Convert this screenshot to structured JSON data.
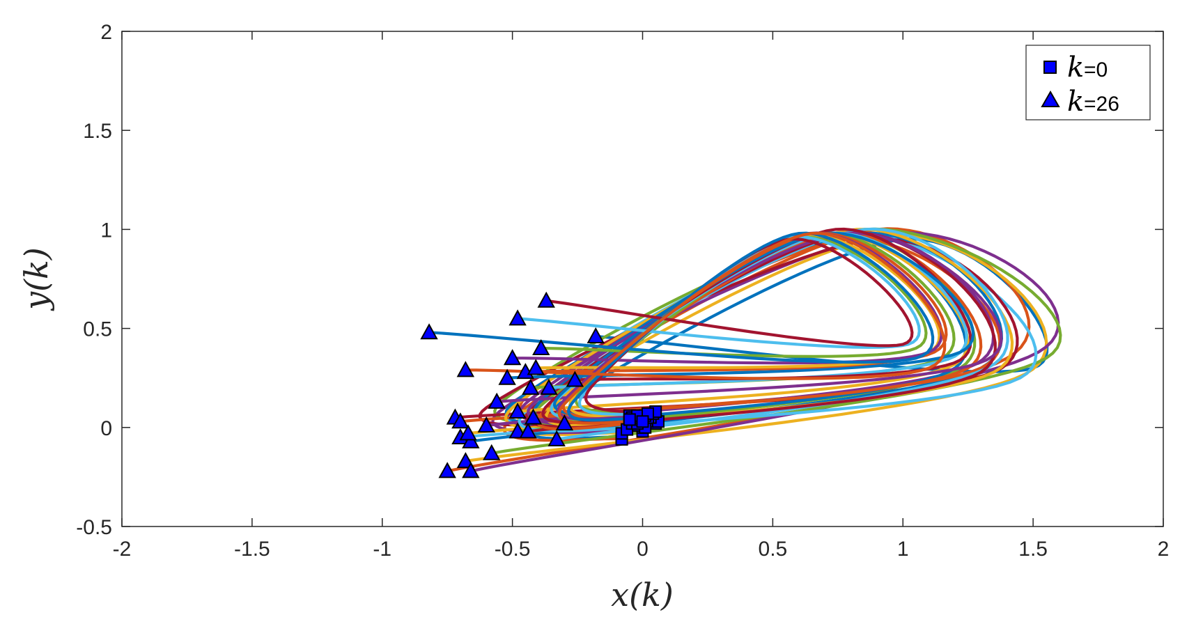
{
  "chart_data": {
    "type": "line",
    "xlabel": "x(k)",
    "ylabel": "y(k)",
    "xlim": [
      -2,
      2
    ],
    "ylim": [
      -0.5,
      2
    ],
    "xticks": [
      -2,
      -1.5,
      -1,
      -0.5,
      0,
      0.5,
      1,
      1.5,
      2
    ],
    "yticks": [
      -0.5,
      0,
      0.5,
      1,
      1.5,
      2
    ],
    "xtick_labels": [
      "-2",
      "-1.5",
      "-1",
      "-0.5",
      "0",
      "0.5",
      "1",
      "1.5",
      "2"
    ],
    "ytick_labels": [
      "-0.5",
      "0",
      "0.5",
      "1",
      "1.5",
      "2"
    ],
    "grid": false,
    "legend": {
      "position": "top-right",
      "entries": [
        {
          "k_label": "k",
          "suffix": "=0",
          "marker": "square"
        },
        {
          "k_label": "k",
          "suffix": "=26",
          "marker": "triangle"
        }
      ]
    },
    "marker_color": "#0000ff",
    "series_colors": [
      "#0072bd",
      "#d95319",
      "#edb120",
      "#7e2f8e",
      "#77ac30",
      "#4dbeee",
      "#a2142f"
    ],
    "series": [
      {
        "x": [
          -0.08,
          -0.4,
          1.0,
          1.5,
          -0.18
        ],
        "y": [
          -0.05,
          0.05,
          0.95,
          0.3,
          0.46
        ]
      },
      {
        "x": [
          -0.08,
          -0.5,
          0.9,
          1.4,
          -0.75
        ],
        "y": [
          -0.06,
          0.05,
          1.0,
          0.35,
          -0.22
        ]
      },
      {
        "x": [
          -0.08,
          -0.45,
          0.95,
          1.47,
          -0.68
        ],
        "y": [
          -0.03,
          0.07,
          0.97,
          0.27,
          -0.17
        ]
      },
      {
        "x": [
          0.0,
          -0.55,
          0.95,
          1.52,
          -0.66
        ],
        "y": [
          -0.02,
          0.08,
          0.98,
          0.38,
          -0.22
        ]
      },
      {
        "x": [
          0.05,
          -0.55,
          0.85,
          1.55,
          -0.58
        ],
        "y": [
          0.02,
          0.12,
          1.0,
          0.35,
          -0.13
        ]
      },
      {
        "x": [
          0.0,
          -0.5,
          0.8,
          1.45,
          -0.7
        ],
        "y": [
          0.0,
          0.1,
          0.98,
          0.25,
          -0.05
        ]
      },
      {
        "x": [
          -0.05,
          -0.6,
          0.9,
          1.35,
          -0.72
        ],
        "y": [
          0.03,
          0.1,
          0.95,
          0.28,
          0.05
        ]
      },
      {
        "x": [
          -0.02,
          -0.5,
          0.85,
          1.3,
          -0.66
        ],
        "y": [
          0.01,
          0.12,
          0.98,
          0.3,
          -0.07
        ]
      },
      {
        "x": [
          0.04,
          -0.45,
          0.8,
          1.3,
          -0.7
        ],
        "y": [
          0.05,
          0.15,
          0.95,
          0.3,
          0.03
        ]
      },
      {
        "x": [
          -0.06,
          -0.5,
          0.82,
          1.35,
          -0.67
        ],
        "y": [
          -0.01,
          0.1,
          1.0,
          0.28,
          -0.03
        ]
      },
      {
        "x": [
          0.02,
          -0.45,
          0.8,
          1.28,
          -0.6
        ],
        "y": [
          0.03,
          0.12,
          0.98,
          0.32,
          0.01
        ]
      },
      {
        "x": [
          -0.03,
          -0.4,
          0.75,
          1.22,
          -0.48
        ],
        "y": [
          0.02,
          0.1,
          0.98,
          0.3,
          -0.02
        ]
      },
      {
        "x": [
          0.01,
          -0.45,
          0.85,
          1.35,
          -0.33
        ],
        "y": [
          0.0,
          0.08,
          1.0,
          0.32,
          -0.06
        ]
      },
      {
        "x": [
          -0.04,
          -0.42,
          0.8,
          1.3,
          -0.44
        ],
        "y": [
          0.02,
          0.1,
          0.98,
          0.28,
          -0.02
        ]
      },
      {
        "x": [
          0.06,
          -0.4,
          0.72,
          1.2,
          -0.3
        ],
        "y": [
          0.03,
          0.12,
          0.98,
          0.3,
          0.02
        ]
      },
      {
        "x": [
          -0.02,
          -0.38,
          0.75,
          1.25,
          -0.42
        ],
        "y": [
          0.02,
          0.08,
          0.98,
          0.3,
          0.05
        ]
      },
      {
        "x": [
          0.0,
          -0.35,
          0.7,
          1.2,
          -0.48
        ],
        "y": [
          0.04,
          0.1,
          0.98,
          0.32,
          0.08
        ]
      },
      {
        "x": [
          0.03,
          -0.42,
          0.78,
          1.32,
          -0.56
        ],
        "y": [
          0.05,
          0.12,
          0.98,
          0.34,
          0.13
        ]
      },
      {
        "x": [
          -0.05,
          -0.3,
          0.68,
          1.15,
          -0.43
        ],
        "y": [
          0.06,
          0.12,
          0.98,
          0.35,
          0.2
        ]
      },
      {
        "x": [
          0.02,
          -0.33,
          0.72,
          1.2,
          -0.36
        ],
        "y": [
          0.05,
          0.14,
          0.98,
          0.36,
          0.2
        ]
      },
      {
        "x": [
          -0.01,
          -0.36,
          0.74,
          1.22,
          -0.26
        ],
        "y": [
          0.04,
          0.12,
          1.0,
          0.34,
          0.24
        ]
      },
      {
        "x": [
          0.04,
          -0.32,
          0.7,
          1.22,
          -0.52
        ],
        "y": [
          0.07,
          0.16,
          0.98,
          0.38,
          0.25
        ]
      },
      {
        "x": [
          -0.03,
          -0.28,
          0.66,
          1.12,
          -0.45
        ],
        "y": [
          0.05,
          0.16,
          0.98,
          0.38,
          0.28
        ]
      },
      {
        "x": [
          0.01,
          -0.26,
          0.62,
          1.1,
          -0.41
        ],
        "y": [
          0.06,
          0.16,
          0.97,
          0.38,
          0.3
        ]
      },
      {
        "x": [
          -0.04,
          -0.3,
          0.64,
          1.1,
          -0.5
        ],
        "y": [
          0.05,
          0.14,
          0.98,
          0.38,
          0.35
        ]
      },
      {
        "x": [
          0.05,
          -0.24,
          0.6,
          1.05,
          -0.39
        ],
        "y": [
          0.08,
          0.18,
          0.96,
          0.4,
          0.4
        ]
      },
      {
        "x": [
          -0.02,
          -0.22,
          0.58,
          1.02,
          -0.48
        ],
        "y": [
          0.06,
          0.18,
          0.96,
          0.42,
          0.55
        ]
      },
      {
        "x": [
          0.02,
          -0.2,
          0.56,
          1.0,
          -0.37
        ],
        "y": [
          0.07,
          0.2,
          0.95,
          0.42,
          0.64
        ]
      },
      {
        "x": [
          -0.05,
          -0.26,
          0.6,
          1.05,
          -0.82
        ],
        "y": [
          0.04,
          0.14,
          0.98,
          0.35,
          0.48
        ]
      },
      {
        "x": [
          0.0,
          -0.3,
          0.65,
          1.1,
          -0.68
        ],
        "y": [
          0.03,
          0.12,
          0.98,
          0.3,
          0.29
        ]
      }
    ]
  }
}
